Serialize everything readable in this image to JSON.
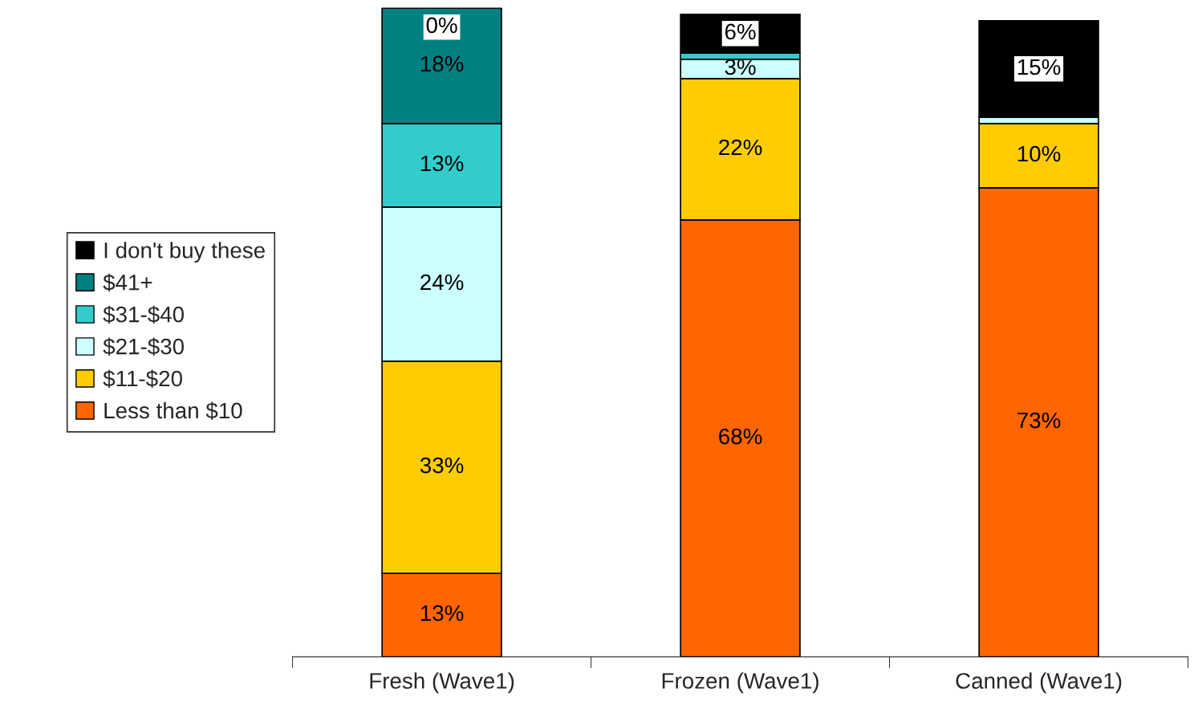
{
  "chart_data": {
    "type": "bar",
    "stacked": true,
    "categories": [
      "Fresh (Wave1)",
      "Frozen (Wave1)",
      "Canned (Wave1)"
    ],
    "series": [
      {
        "name": "Less than $10",
        "color": "#ff6600",
        "values": [
          13,
          68,
          73
        ],
        "value_labels": [
          "13%",
          "68%",
          "73%"
        ]
      },
      {
        "name": "$11-$20",
        "color": "#ffcc00",
        "values": [
          33,
          22,
          10
        ],
        "value_labels": [
          "33%",
          "22%",
          "10%"
        ]
      },
      {
        "name": "$21-$30",
        "color": "#ccffff",
        "values": [
          24,
          3,
          1
        ],
        "value_labels": [
          "24%",
          "3%",
          null
        ]
      },
      {
        "name": "$31-$40",
        "color": "#33cccc",
        "values": [
          13,
          1,
          0
        ],
        "value_labels": [
          "13%",
          null,
          null
        ]
      },
      {
        "name": "$41+",
        "color": "#008080",
        "values": [
          18,
          0,
          0
        ],
        "value_labels": [
          "18%",
          null,
          null
        ]
      },
      {
        "name": "I don't buy these",
        "color": "#000000",
        "values": [
          0,
          6,
          15
        ],
        "value_labels": [
          "0%",
          "6%",
          "15%"
        ]
      }
    ],
    "ylim": [
      0,
      101
    ],
    "tick_labels": "x",
    "legend": "left",
    "grid": false
  }
}
